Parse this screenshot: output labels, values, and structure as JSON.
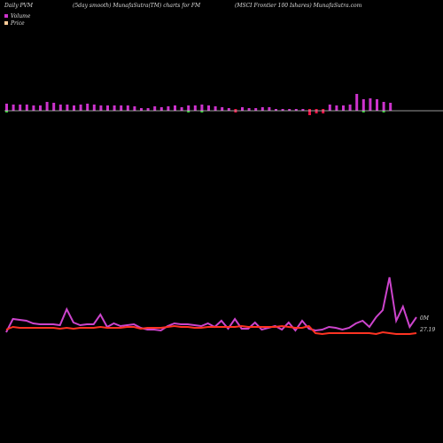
{
  "header": {
    "left": "Daily PVM",
    "middle": "(5day smooth) MunafaSutra(TM) charts for FM",
    "right": "(MSCI Frontier 100  Ishares) MunafaSutra.com"
  },
  "legend": {
    "volume": "Volume",
    "price": "Price"
  },
  "colors": {
    "background": "#000000",
    "volume_up": "#cc33cc",
    "volume_down": "#ee1144",
    "volume_green": "#33cc33",
    "volume_line": "#cc44cc",
    "price_line": "#ff3322",
    "baseline": "#cccccc"
  },
  "chart_data": {
    "type": "bar",
    "title": "(5day smooth) MunafaSutra(TM) charts for FM",
    "volume_label": "0M",
    "price_label": "27.19",
    "volume_bars": [
      {
        "h": 8,
        "dir": "up",
        "green": true
      },
      {
        "h": 7,
        "dir": "up"
      },
      {
        "h": 7,
        "dir": "up"
      },
      {
        "h": 7,
        "dir": "up"
      },
      {
        "h": 6,
        "dir": "up"
      },
      {
        "h": 6,
        "dir": "up"
      },
      {
        "h": 10,
        "dir": "up"
      },
      {
        "h": 9,
        "dir": "up"
      },
      {
        "h": 7,
        "dir": "up"
      },
      {
        "h": 7,
        "dir": "up"
      },
      {
        "h": 6,
        "dir": "up"
      },
      {
        "h": 7,
        "dir": "up"
      },
      {
        "h": 8,
        "dir": "up"
      },
      {
        "h": 7,
        "dir": "up"
      },
      {
        "h": 6,
        "dir": "up"
      },
      {
        "h": 6,
        "dir": "up"
      },
      {
        "h": 6,
        "dir": "up"
      },
      {
        "h": 6,
        "dir": "up"
      },
      {
        "h": 6,
        "dir": "up"
      },
      {
        "h": 5,
        "dir": "up"
      },
      {
        "h": 3,
        "dir": "up"
      },
      {
        "h": 3,
        "dir": "up"
      },
      {
        "h": 5,
        "dir": "up"
      },
      {
        "h": 4,
        "dir": "up"
      },
      {
        "h": 5,
        "dir": "up"
      },
      {
        "h": 6,
        "dir": "up"
      },
      {
        "h": 4,
        "dir": "up"
      },
      {
        "h": 6,
        "dir": "up",
        "green": true
      },
      {
        "h": 6,
        "dir": "up"
      },
      {
        "h": 7,
        "dir": "up",
        "green": true
      },
      {
        "h": 6,
        "dir": "up"
      },
      {
        "h": 5,
        "dir": "up"
      },
      {
        "h": 4,
        "dir": "up"
      },
      {
        "h": 3,
        "dir": "up"
      },
      {
        "h": 4,
        "dir": "down"
      },
      {
        "h": 4,
        "dir": "up"
      },
      {
        "h": 3,
        "dir": "up"
      },
      {
        "h": 3,
        "dir": "up"
      },
      {
        "h": 4,
        "dir": "up"
      },
      {
        "h": 4,
        "dir": "up"
      },
      {
        "h": 2,
        "dir": "up"
      },
      {
        "h": 2,
        "dir": "up"
      },
      {
        "h": 2,
        "dir": "up"
      },
      {
        "h": 2,
        "dir": "up"
      },
      {
        "h": 2,
        "dir": "up"
      },
      {
        "h": 7,
        "dir": "down"
      },
      {
        "h": 5,
        "dir": "down"
      },
      {
        "h": 5,
        "dir": "down"
      },
      {
        "h": 7,
        "dir": "up"
      },
      {
        "h": 6,
        "dir": "up"
      },
      {
        "h": 6,
        "dir": "up"
      },
      {
        "h": 7,
        "dir": "up"
      },
      {
        "h": 19,
        "dir": "up"
      },
      {
        "h": 13,
        "dir": "up",
        "green": true
      },
      {
        "h": 14,
        "dir": "up"
      },
      {
        "h": 13,
        "dir": "up"
      },
      {
        "h": 10,
        "dir": "up",
        "green": true
      },
      {
        "h": 9,
        "dir": "up"
      }
    ],
    "volume_line": [
      375,
      360,
      361,
      362,
      365,
      366,
      366,
      366,
      367,
      349,
      364,
      367,
      366,
      366,
      355,
      369,
      365,
      368,
      367,
      366,
      370,
      372,
      372,
      373,
      368,
      365,
      366,
      366,
      367,
      368,
      365,
      369,
      362,
      371,
      360,
      371,
      371,
      364,
      372,
      370,
      368,
      372,
      364,
      373,
      362,
      371,
      373,
      372,
      369,
      370,
      372,
      370,
      365,
      362,
      369,
      358,
      350,
      313,
      362,
      346,
      369,
      358
    ],
    "price_line": [
      372,
      369,
      370,
      370,
      370,
      370,
      370,
      370,
      371,
      370,
      371,
      370,
      370,
      370,
      369,
      370,
      370,
      370,
      369,
      369,
      371,
      370,
      370,
      370,
      369,
      368,
      369,
      369,
      370,
      370,
      369,
      369,
      369,
      369,
      369,
      368,
      369,
      369,
      369,
      369,
      369,
      368,
      369,
      370,
      370,
      368,
      376,
      377,
      376,
      376,
      376,
      376,
      376,
      376,
      376,
      377,
      375,
      376,
      377,
      377,
      377,
      376
    ]
  }
}
